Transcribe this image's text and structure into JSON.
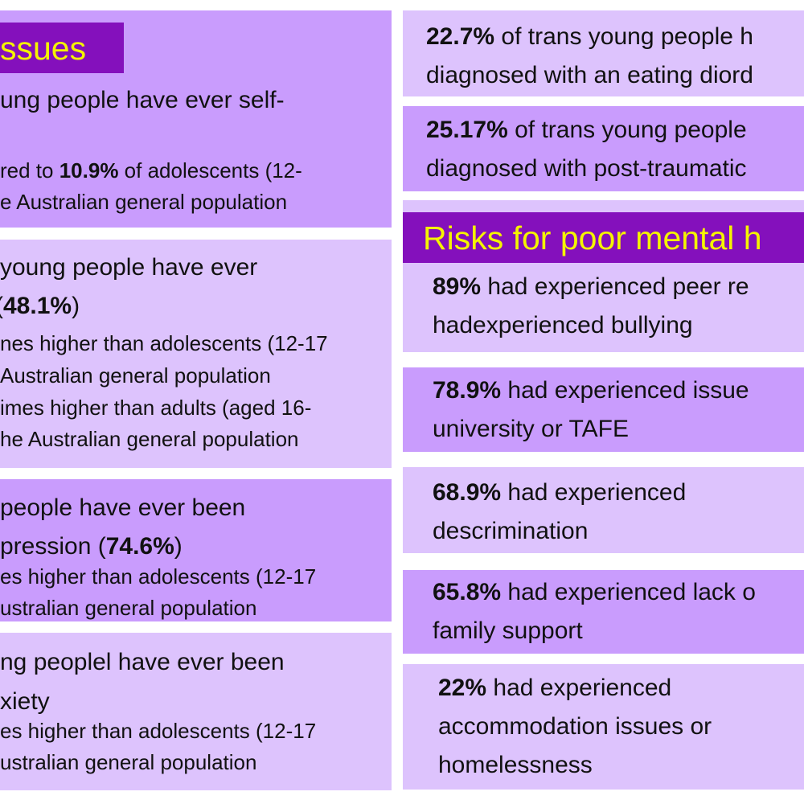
{
  "left": {
    "header": "ssues",
    "selfharm": {
      "line1": "ung people have ever self-",
      "line3_pre": "red to ",
      "line3_bold": "10.9%",
      "line3_post": " of adolescents (12-",
      "line4": "e Australian general population"
    },
    "suicide": {
      "line1": " young people have ever",
      "line2_pre": "(",
      "line2_bold": "48.1%",
      "line2_post": ")",
      "line3": "nes higher than adolescents (12-17",
      "line4": "Australian general population",
      "line5": "imes higher than adults (aged 16-",
      "line6": "he Australian general population"
    },
    "depression": {
      "line1": "people have ever been",
      "line2_pre": "pression (",
      "line2_bold": "74.6%",
      "line2_post": ")",
      "line3": "es higher than adolescents (12-17",
      "line4": "ustralian general population"
    },
    "anxiety": {
      "line1": "ng peoplel have ever been",
      "line2": "xiety",
      "line3": "es higher than adolescents (12-17",
      "line4": "ustralian general population"
    }
  },
  "right": {
    "eating": {
      "bold": "22.7%",
      "line1": " of trans young people h",
      "line2": "diagnosed with an eating diord"
    },
    "ptsd": {
      "bold": "25.17%",
      "line1": " of trans young people",
      "line2": "diagnosed with post-traumatic"
    },
    "risks_header": "Risks for poor mental h",
    "risks": [
      {
        "bold": "89%",
        "line1": " had experienced peer re",
        "line2": "hadexperienced  bullying"
      },
      {
        "bold": "78.9%",
        "line1": " had experienced issue",
        "line2": "university or TAFE"
      },
      {
        "bold": "68.9%",
        "line1": " had experienced",
        "line2": "descrimination"
      },
      {
        "bold": "65.8%",
        "line1": " had experienced lack o",
        "line2": "family support"
      },
      {
        "bold": "22%",
        "line1": " had experienced",
        "line2": "accommodation issues or",
        "line3": "homelessness"
      }
    ]
  },
  "colors": {
    "dark": "#8410bc",
    "medium": "#c99cfd",
    "light": "#ddc3fd",
    "heading_text": "#f4f400"
  }
}
